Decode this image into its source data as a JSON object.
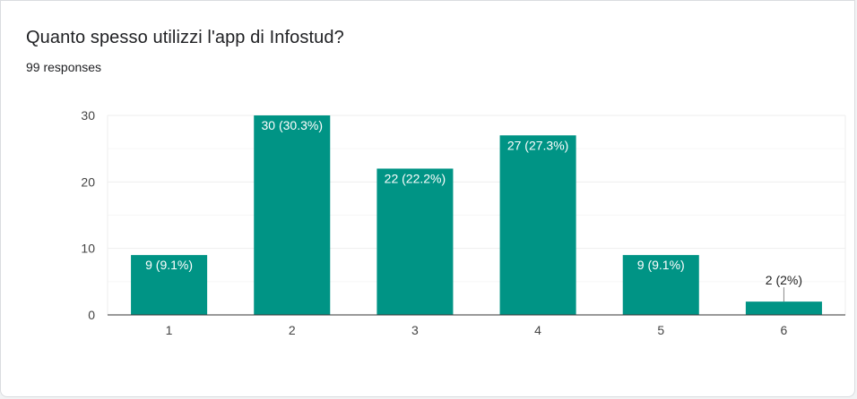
{
  "header": {
    "title": "Quanto spesso utilizzi l'app di Infostud?",
    "responses": "99 responses"
  },
  "colors": {
    "bar": "#009485",
    "gridline": "#eeeeee",
    "minor_gridline": "#f6f6f6",
    "axis": "#333333",
    "label_inside": "#ffffff",
    "label_outside": "#222222"
  },
  "chart_data": {
    "type": "bar",
    "categories": [
      "1",
      "2",
      "3",
      "4",
      "5",
      "6"
    ],
    "values": [
      9,
      30,
      22,
      27,
      9,
      2
    ],
    "data_labels": [
      "9 (9.1%)",
      "30 (30.3%)",
      "22 (22.2%)",
      "27 (27.3%)",
      "9 (9.1%)",
      "2 (2%)"
    ],
    "y_ticks": [
      "0",
      "10",
      "20",
      "30"
    ],
    "ylim": [
      0,
      30
    ],
    "grid": true,
    "legend": "none"
  }
}
